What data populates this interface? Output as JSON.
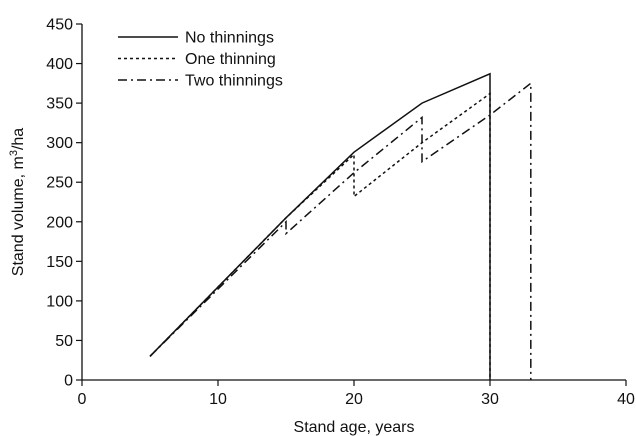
{
  "chart_data": {
    "type": "line",
    "xlabel": "Stand age, years",
    "ylabel_prefix": "Stand volume, m",
    "ylabel_sup": "3",
    "ylabel_suffix": "/ha",
    "xlim": [
      0,
      40
    ],
    "ylim": [
      0,
      450
    ],
    "xticks": [
      "0",
      "10",
      "20",
      "30",
      "40"
    ],
    "yticks": [
      "0",
      "50",
      "100",
      "150",
      "200",
      "250",
      "300",
      "350",
      "400",
      "450"
    ],
    "grid": false,
    "legend_position": "top-left",
    "series": [
      {
        "name": "No thinnings",
        "dash": "solid",
        "points": [
          [
            5,
            30
          ],
          [
            15,
            205
          ],
          [
            20,
            288
          ],
          [
            25,
            350
          ],
          [
            30,
            387
          ],
          [
            30,
            0
          ]
        ]
      },
      {
        "name": "One thinning",
        "dash": "dotted",
        "points": [
          [
            5,
            30
          ],
          [
            15,
            205
          ],
          [
            20,
            285
          ],
          [
            20,
            232
          ],
          [
            25,
            300
          ],
          [
            30,
            362
          ],
          [
            30,
            0
          ]
        ]
      },
      {
        "name": "Two thinnings",
        "dash": "dashdot",
        "points": [
          [
            5,
            30
          ],
          [
            15,
            200
          ],
          [
            15,
            185
          ],
          [
            20,
            262
          ],
          [
            25,
            332
          ],
          [
            25,
            276
          ],
          [
            30,
            335
          ],
          [
            33,
            375
          ],
          [
            33,
            0
          ]
        ]
      }
    ],
    "colors": {
      "line": "#111111",
      "axis": "#111111"
    }
  }
}
